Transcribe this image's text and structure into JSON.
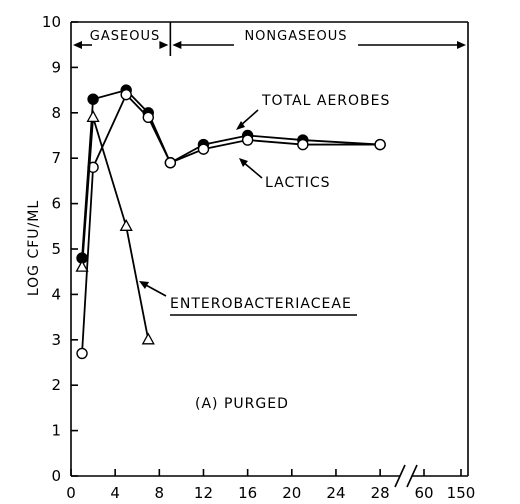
{
  "chart_data": {
    "type": "line",
    "title": "",
    "xlabel": "",
    "ylabel": "LOG CFU/ML",
    "ylim": [
      0,
      10
    ],
    "y_ticks": [
      "0",
      "1",
      "2",
      "3",
      "4",
      "5",
      "6",
      "7",
      "8",
      "9",
      "10"
    ],
    "x_ticks": [
      "0",
      "4",
      "8",
      "12",
      "16",
      "20",
      "24",
      "28",
      "60",
      "150"
    ],
    "x_break": "28-60",
    "phases": [
      {
        "label": "GASEOUS",
        "x_start": 0,
        "x_end": 9
      },
      {
        "label": "NONGASEOUS",
        "x_start": 9,
        "x_end": 28
      }
    ],
    "series": [
      {
        "name": "TOTAL AEROBES",
        "marker": "filled-circle",
        "x": [
          1,
          2,
          5,
          7,
          9,
          12,
          16,
          21,
          28
        ],
        "y": [
          4.8,
          8.3,
          8.5,
          8.0,
          6.9,
          7.3,
          7.5,
          7.4,
          7.3
        ]
      },
      {
        "name": "LACTICS",
        "marker": "open-circle",
        "x": [
          1,
          2,
          5,
          7,
          9,
          12,
          16,
          21,
          28
        ],
        "y": [
          2.7,
          6.8,
          8.4,
          7.9,
          6.9,
          7.2,
          7.4,
          7.3,
          7.3
        ]
      },
      {
        "name": "ENTEROBACTERIACEAE",
        "marker": "open-triangle",
        "x": [
          1,
          2,
          5,
          7
        ],
        "y": [
          4.6,
          7.9,
          5.5,
          3.0
        ]
      }
    ],
    "annotations": [
      {
        "text": "TOTAL AEROBES"
      },
      {
        "text": "LACTICS"
      },
      {
        "text": "ENTEROBACTERIACEAE"
      },
      {
        "text": "(A) PURGED"
      }
    ]
  }
}
